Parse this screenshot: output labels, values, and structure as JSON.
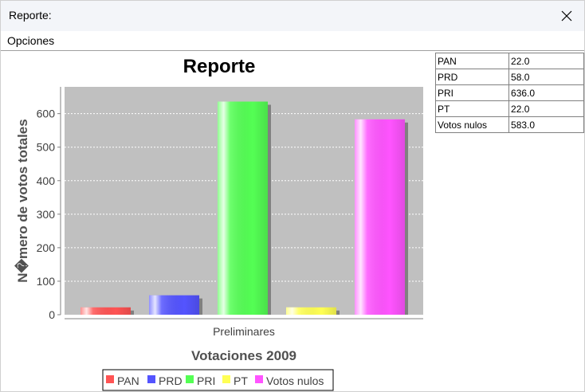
{
  "window": {
    "title": "Reporte:"
  },
  "menu": {
    "opciones": "Opciones"
  },
  "colors": {
    "PAN": "#ff5454",
    "PRD": "#5454ff",
    "PRI": "#54ff54",
    "PT": "#ffff54",
    "Votos nulos": "#ff54ff"
  },
  "chart_data": {
    "type": "bar",
    "title": "Reporte",
    "xlabel": "Votaciones 2009",
    "ylabel": "N�mero de votos totales",
    "categories": [
      "Preliminares"
    ],
    "series": [
      {
        "name": "PAN",
        "values": [
          22.0
        ]
      },
      {
        "name": "PRD",
        "values": [
          58.0
        ]
      },
      {
        "name": "PRI",
        "values": [
          636.0
        ]
      },
      {
        "name": "PT",
        "values": [
          22.0
        ]
      },
      {
        "name": "Votos nulos",
        "values": [
          583.0
        ]
      }
    ],
    "yticks": [
      "0",
      "100",
      "200",
      "300",
      "400",
      "500",
      "600"
    ],
    "ylim": [
      0,
      680
    ],
    "grid": true,
    "legend": "bottom"
  },
  "table": {
    "rows": [
      {
        "name": "PAN",
        "value": "22.0"
      },
      {
        "name": "PRD",
        "value": "58.0"
      },
      {
        "name": "PRI",
        "value": "636.0"
      },
      {
        "name": "PT",
        "value": "22.0"
      },
      {
        "name": "Votos nulos",
        "value": "583.0"
      }
    ]
  }
}
